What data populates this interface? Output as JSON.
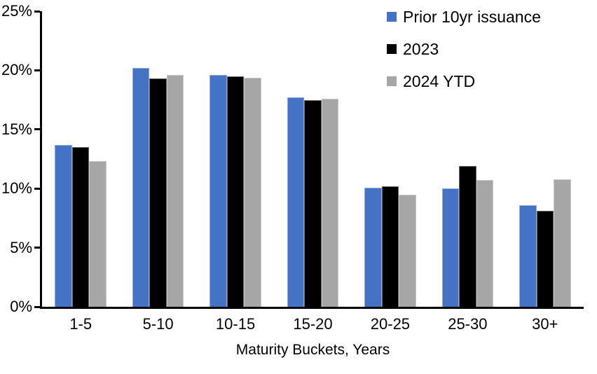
{
  "chart_data": {
    "type": "bar",
    "title": "",
    "xlabel": "Maturity Buckets, Years",
    "ylabel": "",
    "categories": [
      "1-5",
      "5-10",
      "10-15",
      "15-20",
      "20-25",
      "25-30",
      "30+"
    ],
    "series": [
      {
        "name": "Prior 10yr issuance",
        "color": "#4472C4",
        "values": [
          13.7,
          20.2,
          19.6,
          17.7,
          10.1,
          10.0,
          8.6
        ]
      },
      {
        "name": "2023",
        "color": "#000000",
        "values": [
          13.5,
          19.3,
          19.5,
          17.5,
          10.2,
          11.9,
          8.1
        ]
      },
      {
        "name": "2024 YTD",
        "color": "#A6A6A6",
        "values": [
          12.3,
          19.6,
          19.4,
          17.6,
          9.5,
          10.7,
          10.8
        ]
      }
    ],
    "ylim": [
      0,
      25
    ],
    "ytick_step": 5,
    "ytick_labels": [
      "0%",
      "5%",
      "10%",
      "15%",
      "20%",
      "25%"
    ],
    "grid": false,
    "legend_position": "top-right",
    "axis_color": "#000000",
    "background_color": "#FFFFFF"
  }
}
